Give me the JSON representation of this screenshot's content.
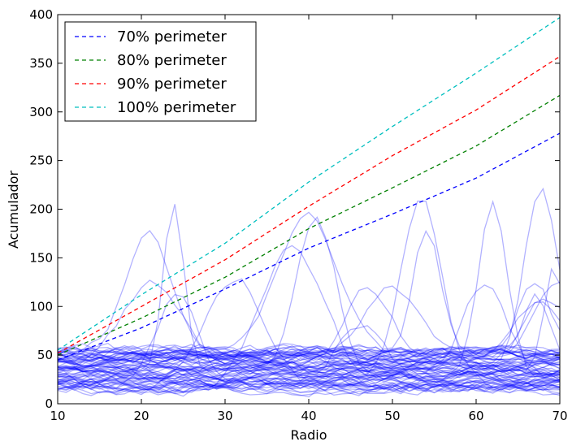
{
  "chart_data": {
    "type": "line",
    "title": "",
    "xlabel": "Radio",
    "ylabel": "Acumulador",
    "xlim": [
      10,
      70
    ],
    "ylim": [
      0,
      400
    ],
    "xticks": [
      "10",
      "20",
      "30",
      "40",
      "50",
      "60",
      "70"
    ],
    "yticks": [
      "0",
      "50",
      "100",
      "150",
      "200",
      "250",
      "300",
      "350",
      "400"
    ],
    "grid": false,
    "legend_position": "top-left",
    "series": [
      {
        "name": "70% perimeter",
        "style": "dashed",
        "color": "#0000ff",
        "x": [
          10,
          20,
          30,
          40,
          50,
          60,
          70
        ],
        "y": [
          45,
          78,
          118,
          160,
          195,
          232,
          278
        ]
      },
      {
        "name": "80% perimeter",
        "style": "dashed",
        "color": "#008000",
        "x": [
          10,
          20,
          30,
          40,
          50,
          60,
          70
        ],
        "y": [
          50,
          88,
          130,
          180,
          222,
          265,
          317
        ]
      },
      {
        "name": "90% perimeter",
        "style": "dashed",
        "color": "#ff0000",
        "x": [
          10,
          20,
          30,
          40,
          50,
          60,
          70
        ],
        "y": [
          52,
          100,
          148,
          203,
          255,
          302,
          357
        ]
      },
      {
        "name": "100% perimeter",
        "style": "dashed",
        "color": "#00bfbf",
        "x": [
          10,
          20,
          30,
          40,
          50,
          60,
          70
        ],
        "y": [
          55,
          112,
          165,
          228,
          285,
          340,
          397
        ]
      }
    ],
    "background_traces": {
      "color": "#0000ff",
      "opacity": 0.3,
      "count": 80,
      "typical_range": [
        10,
        60
      ],
      "peak_max": 228,
      "peak_radius": 45
    }
  }
}
